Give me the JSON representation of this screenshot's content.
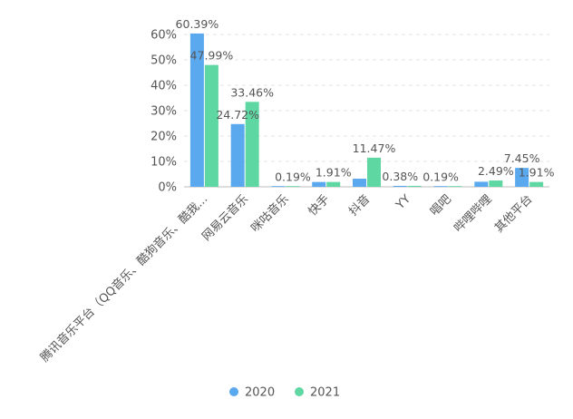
{
  "colors": {
    "series_2020": "#5aa9ee",
    "series_2021": "#5fd7a3",
    "grid": "#e6e6e6",
    "text": "#555555"
  },
  "chart_data": {
    "type": "bar",
    "title": "",
    "xlabel": "",
    "ylabel": "",
    "ylim": [
      0,
      60
    ],
    "yticks": [
      "0%",
      "10%",
      "20%",
      "30%",
      "40%",
      "50%",
      "60%"
    ],
    "categories": [
      "腾讯音乐平台（QQ音乐、酷狗音乐、酷我...",
      "网易云音乐",
      "咪咕音乐",
      "快手",
      "抖音",
      "YY",
      "唱吧",
      "哔哩哔哩",
      "其他平台"
    ],
    "series": [
      {
        "name": "2020",
        "values": [
          60.39,
          24.72,
          0.19,
          1.91,
          3.2,
          0.38,
          0.19,
          2.0,
          7.45
        ],
        "labels": [
          "60.39%",
          "24.72%",
          "",
          "",
          "",
          "0.38%",
          "0.19%",
          "",
          "7.45%"
        ]
      },
      {
        "name": "2021",
        "values": [
          47.99,
          33.46,
          0.19,
          1.91,
          11.47,
          0.38,
          0.19,
          2.49,
          1.91
        ],
        "labels": [
          "47.99%",
          "33.46%",
          "0.19%",
          "1.91%",
          "11.47%",
          "",
          "",
          "2.49%",
          "1.91%"
        ]
      }
    ],
    "legend": {
      "position": "bottom",
      "items": [
        "2020",
        "2021"
      ]
    },
    "grid": true
  }
}
